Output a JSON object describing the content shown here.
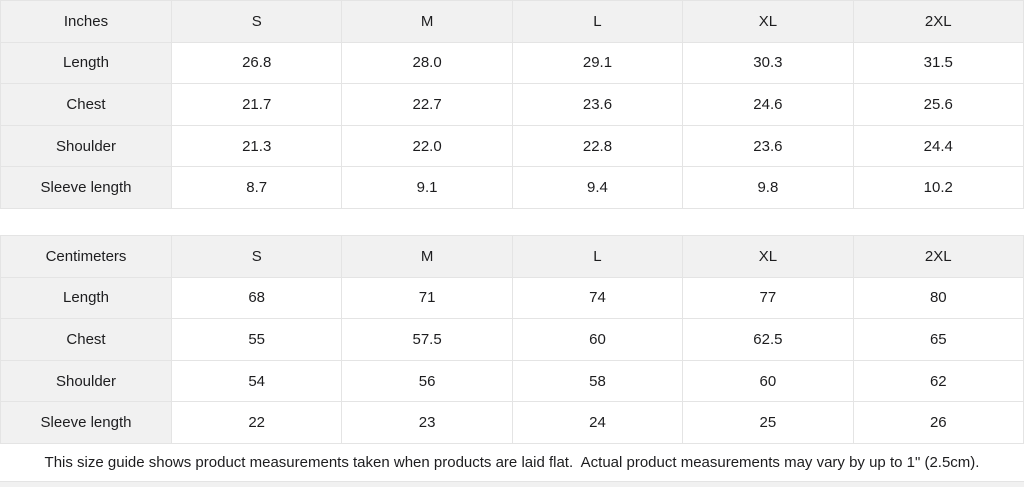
{
  "size_guide": {
    "tables": [
      {
        "unit_label": "Inches",
        "sizes": [
          "S",
          "M",
          "L",
          "XL",
          "2XL"
        ],
        "rows": [
          {
            "label": "Length",
            "values": [
              "26.8",
              "28.0",
              "29.1",
              "30.3",
              "31.5"
            ]
          },
          {
            "label": "Chest",
            "values": [
              "21.7",
              "22.7",
              "23.6",
              "24.6",
              "25.6"
            ]
          },
          {
            "label": "Shoulder",
            "values": [
              "21.3",
              "22.0",
              "22.8",
              "23.6",
              "24.4"
            ]
          },
          {
            "label": "Sleeve length",
            "values": [
              "8.7",
              "9.1",
              "9.4",
              "9.8",
              "10.2"
            ]
          }
        ]
      },
      {
        "unit_label": "Centimeters",
        "sizes": [
          "S",
          "M",
          "L",
          "XL",
          "2XL"
        ],
        "rows": [
          {
            "label": "Length",
            "values": [
              "68",
              "71",
              "74",
              "77",
              "80"
            ]
          },
          {
            "label": "Chest",
            "values": [
              "55",
              "57.5",
              "60",
              "62.5",
              "65"
            ]
          },
          {
            "label": "Shoulder",
            "values": [
              "54",
              "56",
              "58",
              "60",
              "62"
            ]
          },
          {
            "label": "Sleeve length",
            "values": [
              "22",
              "23",
              "24",
              "25",
              "26"
            ]
          }
        ]
      }
    ],
    "footer_note": "This size guide shows product measurements taken when products are laid flat.  Actual product measurements may vary by up to 1\" (2.5cm)."
  },
  "colors": {
    "header_bg": "#f1f1f1",
    "border": "#e4e4e4",
    "text": "#1d1d1f",
    "background": "#ffffff"
  }
}
